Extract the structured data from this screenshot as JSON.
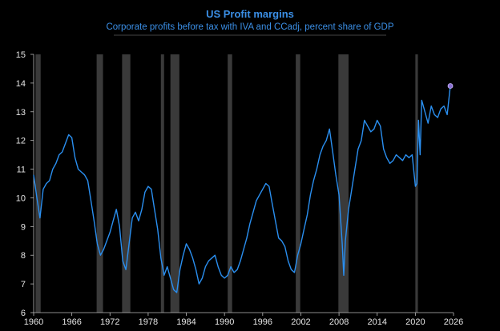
{
  "chart_data": {
    "type": "line",
    "title": "US Profit margins",
    "subtitle": "Corporate profits before tax with IVA and CCadj, percent share of GDP",
    "xlabel": "",
    "ylabel": "",
    "xlim": [
      1960,
      2026
    ],
    "ylim": [
      6,
      15
    ],
    "x_ticks": [
      1960,
      1966,
      1972,
      1978,
      1984,
      1990,
      1996,
      2002,
      2008,
      2014,
      2020,
      2026
    ],
    "y_ticks": [
      6,
      7,
      8,
      9,
      10,
      11,
      12,
      13,
      14,
      15
    ],
    "recessions": [
      [
        1960.3,
        1961.1
      ],
      [
        1969.9,
        1970.9
      ],
      [
        1973.9,
        1975.2
      ],
      [
        1980.0,
        1980.5
      ],
      [
        1981.5,
        1982.9
      ],
      [
        1990.5,
        1991.2
      ],
      [
        2001.2,
        2001.9
      ],
      [
        2007.9,
        2009.5
      ],
      [
        2020.0,
        2020.4
      ]
    ],
    "series": [
      {
        "name": "US Profit margins",
        "color": "#2a8ff0",
        "x": [
          1960.0,
          1960.5,
          1961.0,
          1961.5,
          1962.0,
          1962.5,
          1963.0,
          1963.5,
          1964.0,
          1964.5,
          1965.0,
          1965.5,
          1966.0,
          1966.5,
          1967.0,
          1967.5,
          1968.0,
          1968.5,
          1969.0,
          1969.5,
          1970.0,
          1970.5,
          1971.0,
          1971.5,
          1972.0,
          1972.5,
          1973.0,
          1973.5,
          1974.0,
          1974.5,
          1975.0,
          1975.5,
          1976.0,
          1976.5,
          1977.0,
          1977.5,
          1978.0,
          1978.5,
          1979.0,
          1979.5,
          1980.0,
          1980.5,
          1981.0,
          1981.5,
          1982.0,
          1982.5,
          1983.0,
          1983.5,
          1984.0,
          1984.5,
          1985.0,
          1985.5,
          1986.0,
          1986.5,
          1987.0,
          1987.5,
          1988.0,
          1988.5,
          1989.0,
          1989.5,
          1990.0,
          1990.5,
          1991.0,
          1991.5,
          1992.0,
          1992.5,
          1993.0,
          1993.5,
          1994.0,
          1994.5,
          1995.0,
          1995.5,
          1996.0,
          1996.5,
          1997.0,
          1997.5,
          1998.0,
          1998.5,
          1999.0,
          1999.5,
          2000.0,
          2000.5,
          2001.0,
          2001.5,
          2002.0,
          2002.5,
          2003.0,
          2003.5,
          2004.0,
          2004.5,
          2005.0,
          2005.5,
          2006.0,
          2006.5,
          2007.0,
          2007.5,
          2008.0,
          2008.5,
          2008.75,
          2009.0,
          2009.5,
          2010.0,
          2010.5,
          2011.0,
          2011.5,
          2012.0,
          2012.5,
          2013.0,
          2013.5,
          2014.0,
          2014.5,
          2015.0,
          2015.5,
          2016.0,
          2016.5,
          2017.0,
          2017.5,
          2018.0,
          2018.5,
          2019.0,
          2019.5,
          2020.0,
          2020.25,
          2020.5,
          2020.75,
          2021.0,
          2021.5,
          2022.0,
          2022.5,
          2023.0,
          2023.5,
          2024.0,
          2024.5,
          2025.0,
          2025.5
        ],
        "values": [
          10.8,
          10.0,
          9.3,
          10.3,
          10.5,
          10.6,
          11.0,
          11.2,
          11.5,
          11.6,
          11.9,
          12.2,
          12.1,
          11.4,
          11.0,
          10.9,
          10.8,
          10.6,
          9.9,
          9.2,
          8.4,
          8.0,
          8.2,
          8.5,
          8.8,
          9.2,
          9.6,
          9.0,
          7.8,
          7.5,
          8.4,
          9.3,
          9.5,
          9.2,
          9.6,
          10.2,
          10.4,
          10.3,
          9.6,
          8.9,
          7.9,
          7.3,
          7.6,
          7.2,
          6.8,
          6.7,
          7.5,
          8.0,
          8.4,
          8.2,
          7.9,
          7.5,
          7.0,
          7.2,
          7.6,
          7.8,
          7.9,
          8.0,
          7.6,
          7.3,
          7.2,
          7.3,
          7.6,
          7.4,
          7.5,
          7.8,
          8.2,
          8.6,
          9.1,
          9.5,
          9.9,
          10.1,
          10.3,
          10.5,
          10.4,
          9.8,
          9.2,
          8.6,
          8.5,
          8.3,
          7.8,
          7.5,
          7.4,
          8.0,
          8.4,
          8.9,
          9.4,
          10.1,
          10.6,
          11.0,
          11.5,
          11.8,
          12.0,
          12.4,
          11.6,
          10.8,
          10.1,
          8.4,
          7.3,
          8.5,
          9.6,
          10.3,
          11.0,
          11.7,
          12.0,
          12.7,
          12.5,
          12.3,
          12.4,
          12.7,
          12.5,
          11.7,
          11.4,
          11.2,
          11.3,
          11.5,
          11.4,
          11.3,
          11.5,
          11.4,
          11.5,
          10.4,
          10.5,
          12.7,
          11.5,
          13.4,
          13.0,
          12.6,
          13.2,
          12.9,
          12.8,
          13.1,
          13.2,
          12.9,
          13.9
        ]
      }
    ]
  }
}
